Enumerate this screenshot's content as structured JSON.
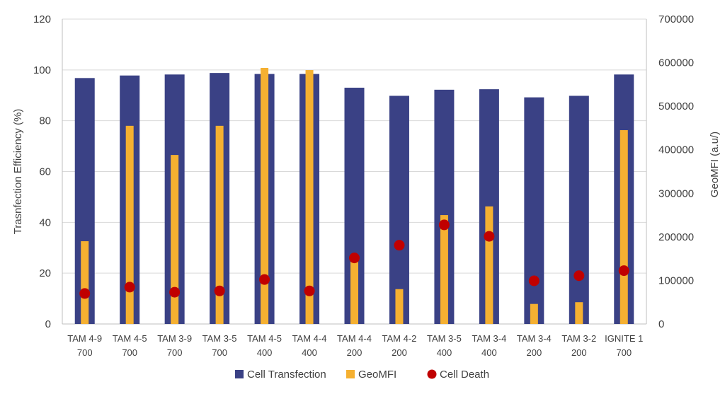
{
  "chart_data": {
    "type": "bar",
    "categories": [
      [
        "TAM 4-9",
        "700"
      ],
      [
        "TAM 4-5",
        "700"
      ],
      [
        "TAM 3-9",
        "700"
      ],
      [
        "TAM 3-5",
        "700"
      ],
      [
        "TAM 4-5",
        "400"
      ],
      [
        "TAM 4-4",
        "400"
      ],
      [
        "TAM 4-4",
        "200"
      ],
      [
        "TAM 4-2",
        "200"
      ],
      [
        "TAM 3-5",
        "400"
      ],
      [
        "TAM 3-4",
        "400"
      ],
      [
        "TAM 3-4",
        "200"
      ],
      [
        "TAM 3-2",
        "200"
      ],
      [
        "IGNITE 1",
        "700"
      ]
    ],
    "series": [
      {
        "name": "Cell Transfection",
        "axis": "left",
        "kind": "bar",
        "color": "#3a4185",
        "values": [
          96.8,
          97.8,
          98.2,
          98.8,
          98.4,
          98.4,
          93.0,
          89.8,
          92.2,
          92.4,
          89.2,
          89.8,
          98.2
        ]
      },
      {
        "name": "GeoMFI",
        "axis": "right",
        "kind": "bar",
        "color": "#f5b031",
        "values": [
          190000,
          455000,
          388000,
          455000,
          588000,
          583000,
          150000,
          80000,
          250000,
          270000,
          46000,
          50000,
          445000
        ]
      },
      {
        "name": "Cell Death",
        "axis": "left",
        "kind": "scatter",
        "color": "#c00000",
        "values": [
          12,
          14.5,
          12.5,
          13,
          17.5,
          13,
          26,
          31,
          39,
          34.5,
          17,
          19,
          21
        ]
      }
    ],
    "ylabel": "Trasnfection Efficiency (%)",
    "ylabel_right": "GeoMFI (a.u/)",
    "ylim": [
      0,
      120
    ],
    "yticks": [
      "0",
      "20",
      "40",
      "60",
      "80",
      "100",
      "120"
    ],
    "ylim_right": [
      0,
      700000
    ],
    "yticks_right": [
      "0",
      "100000",
      "200000",
      "300000",
      "400000",
      "500000",
      "600000",
      "700000"
    ],
    "grid": true,
    "legend_position": "bottom"
  }
}
